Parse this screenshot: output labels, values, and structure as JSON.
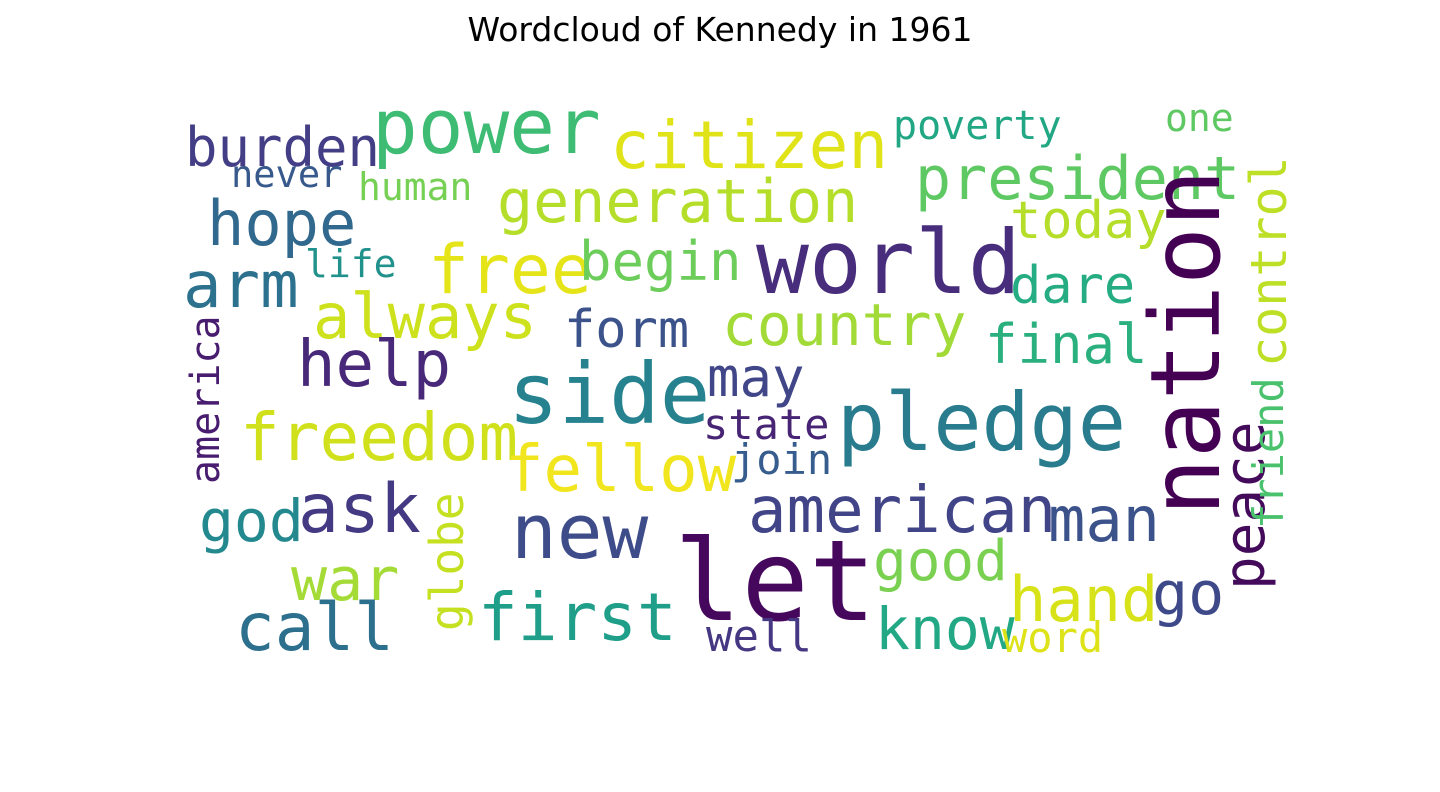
{
  "title": "Wordcloud of Kennedy in 1961",
  "words": [
    {
      "text": "power",
      "color": "#3fbc73"
    },
    {
      "text": "citizen",
      "color": "#dfe318"
    },
    {
      "text": "poverty",
      "color": "#22a785"
    },
    {
      "text": "one",
      "color": "#5ec962"
    },
    {
      "text": "burden",
      "color": "#433e85"
    },
    {
      "text": "never",
      "color": "#38598c"
    },
    {
      "text": "human",
      "color": "#75d054"
    },
    {
      "text": "generation",
      "color": "#b5de2b"
    },
    {
      "text": "president",
      "color": "#5ec962"
    },
    {
      "text": "hope",
      "color": "#31688e"
    },
    {
      "text": "today",
      "color": "#b5de2b"
    },
    {
      "text": "world",
      "color": "#472d7b"
    },
    {
      "text": "life",
      "color": "#21918c"
    },
    {
      "text": "free",
      "color": "#e5e419"
    },
    {
      "text": "begin",
      "color": "#6ccd5a"
    },
    {
      "text": "arm",
      "color": "#2c728e"
    },
    {
      "text": "dare",
      "color": "#25ac82"
    },
    {
      "text": "always",
      "color": "#cde11d"
    },
    {
      "text": "country",
      "color": "#a2da37"
    },
    {
      "text": "form",
      "color": "#3b528b"
    },
    {
      "text": "final",
      "color": "#2ab07f"
    },
    {
      "text": "help",
      "color": "#482878"
    },
    {
      "text": "side",
      "color": "#26828e"
    },
    {
      "text": "may",
      "color": "#404688"
    },
    {
      "text": "pledge",
      "color": "#287c8e"
    },
    {
      "text": "state",
      "color": "#482475"
    },
    {
      "text": "freedom",
      "color": "#d0e11c"
    },
    {
      "text": "fellow",
      "color": "#f1e51d"
    },
    {
      "text": "join",
      "color": "#365d8d"
    },
    {
      "text": "ask",
      "color": "#443983"
    },
    {
      "text": "god",
      "color": "#23898e"
    },
    {
      "text": "new",
      "color": "#3e4c8a"
    },
    {
      "text": "american",
      "color": "#414487"
    },
    {
      "text": "man",
      "color": "#3b528b"
    },
    {
      "text": "war",
      "color": "#a5db36"
    },
    {
      "text": "let",
      "color": "#46085c"
    },
    {
      "text": "good",
      "color": "#7ad151"
    },
    {
      "text": "hand",
      "color": "#d8e219"
    },
    {
      "text": "go",
      "color": "#3e4989"
    },
    {
      "text": "call",
      "color": "#2d708e"
    },
    {
      "text": "first",
      "color": "#1f9e89"
    },
    {
      "text": "know",
      "color": "#22a884"
    },
    {
      "text": "well",
      "color": "#453781"
    },
    {
      "text": "word",
      "color": "#dde318"
    },
    {
      "text": "nation",
      "color": "#440154"
    },
    {
      "text": "control",
      "color": "#bddf26"
    },
    {
      "text": "peace",
      "color": "#450b5b"
    },
    {
      "text": "america",
      "color": "#481c6e"
    },
    {
      "text": "friend",
      "color": "#4ac16d"
    },
    {
      "text": "globe",
      "color": "#c5e021"
    }
  ]
}
